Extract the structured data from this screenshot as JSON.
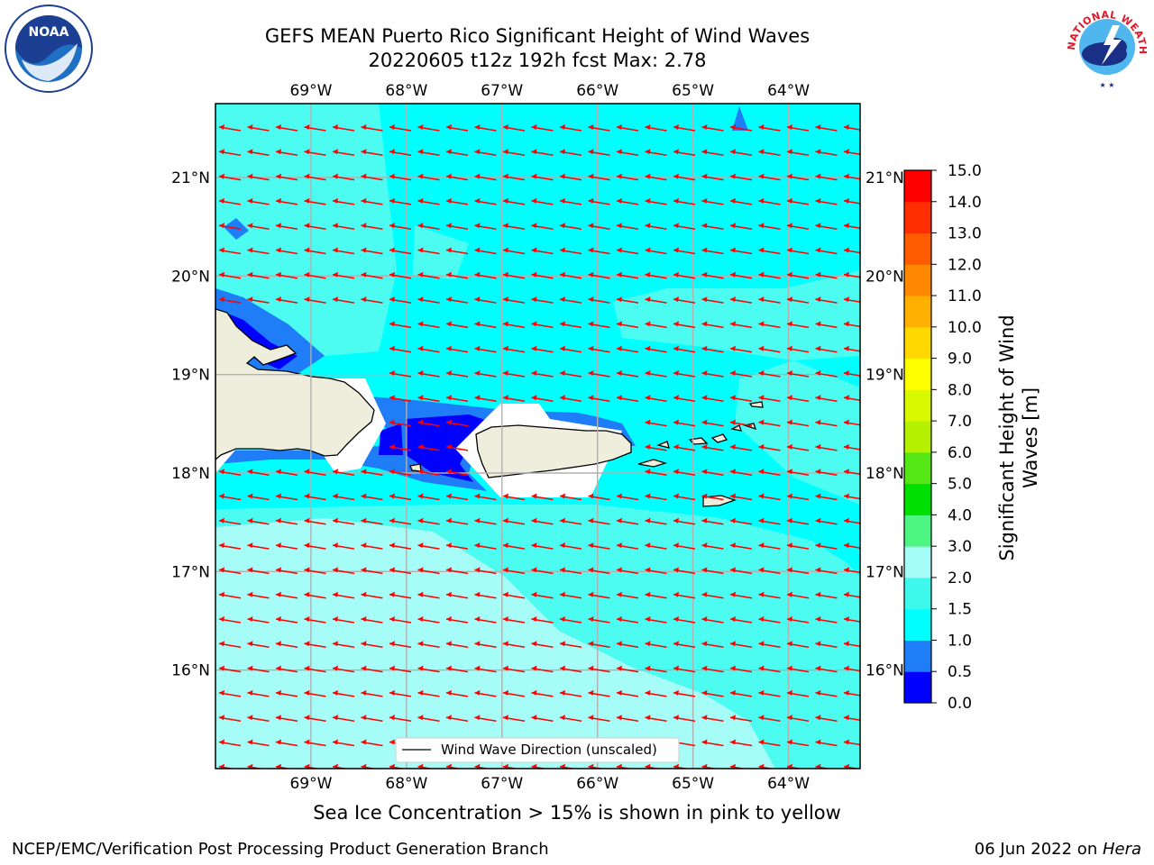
{
  "title": {
    "line1": "GEFS MEAN Puerto Rico Significant Height of Wind Waves",
    "line2": "20220605 t12z 192h fcst   Max: 2.78"
  },
  "map": {
    "lon_range": [
      -70.0,
      -63.25
    ],
    "lat_range": [
      15.0,
      21.75
    ],
    "lon_ticks": [
      {
        "value": -69,
        "label": "69°W"
      },
      {
        "value": -68,
        "label": "68°W"
      },
      {
        "value": -67,
        "label": "67°W"
      },
      {
        "value": -66,
        "label": "66°W"
      },
      {
        "value": -65,
        "label": "65°W"
      },
      {
        "value": -64,
        "label": "64°W"
      }
    ],
    "lat_ticks": [
      {
        "value": 21,
        "label": "21°N"
      },
      {
        "value": 20,
        "label": "20°N"
      },
      {
        "value": 19,
        "label": "19°N"
      },
      {
        "value": 18,
        "label": "18°N"
      },
      {
        "value": 17,
        "label": "17°N"
      },
      {
        "value": 16,
        "label": "16°N"
      }
    ],
    "grid": true,
    "arrow_color": "#ff0000",
    "land_color": "#efeddc",
    "legend_label": "Wind Wave Direction (unscaled)",
    "legend_position": "bottom-center"
  },
  "colorbar": {
    "label": "Significant Height of Wind Waves [m]",
    "label_line1": "Significant Height of Wind",
    "label_line2": "Waves [m]",
    "levels": [
      "0.0",
      "0.5",
      "1.0",
      "1.5",
      "2.0",
      "3.0",
      "4.0",
      "5.0",
      "6.0",
      "7.0",
      "8.0",
      "9.0",
      "10.0",
      "11.0",
      "12.0",
      "13.0",
      "14.0",
      "15.0"
    ],
    "colors": [
      "#0000ff",
      "#1e7df7",
      "#00ffff",
      "#3ff9ec",
      "#a6fcf6",
      "#4df582",
      "#00e000",
      "#55e615",
      "#b4f000",
      "#d7fa00",
      "#ffff00",
      "#ffd800",
      "#ffb000",
      "#ff8800",
      "#ff5c00",
      "#ff2e00",
      "#ff0000"
    ]
  },
  "logos": {
    "noaa_text": "NOAA",
    "nws_text": "NATIONAL WEATHER SERVICE"
  },
  "footer": {
    "caption": "Sea Ice Concentration > 15% is shown in pink to yellow",
    "credit": "NCEP/EMC/Verification Post Processing Product Generation Branch",
    "date": "06 Jun 2022 on ",
    "machine": "Hera"
  }
}
